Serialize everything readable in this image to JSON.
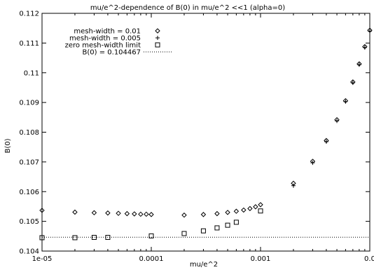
{
  "chart_data": {
    "type": "scatter",
    "title": "mu/e^2-dependence of B(0) in mu/e^2 <<1 (alpha=0)",
    "xlabel": "mu/e^2",
    "ylabel": "B(0)",
    "xscale": "log",
    "xlim": [
      1e-05,
      0.01
    ],
    "ylim": [
      0.104,
      0.112
    ],
    "grid": false,
    "legend_position": "top-left",
    "x_tick_values": [
      1e-05,
      0.0001,
      0.001,
      0.01
    ],
    "x_tick_labels": [
      "1e-05",
      "0.0001",
      "0.001",
      "0.0"
    ],
    "y_tick_values": [
      0.104,
      0.105,
      0.106,
      0.107,
      0.108,
      0.109,
      0.11,
      0.111,
      0.112
    ],
    "y_tick_labels": [
      "0.104",
      "0.105",
      "0.106",
      "0.107",
      "0.108",
      "0.109",
      "0.11",
      "0.111",
      "0.112"
    ],
    "series": [
      {
        "name": "mesh-width = 0.01",
        "marker": "diamond",
        "x": [
          1e-05,
          2e-05,
          3e-05,
          4e-05,
          5e-05,
          6e-05,
          7e-05,
          8e-05,
          9e-05,
          0.0001,
          0.0002,
          0.0003,
          0.0004,
          0.0005,
          0.0006,
          0.0007,
          0.0008,
          0.0009,
          0.001,
          0.002,
          0.003,
          0.004,
          0.005,
          0.006,
          0.007,
          0.008,
          0.009,
          0.01
        ],
        "y": [
          0.10537,
          0.10531,
          0.10529,
          0.10528,
          0.10527,
          0.10526,
          0.10525,
          0.10524,
          0.10524,
          0.10523,
          0.10521,
          0.10523,
          0.10526,
          0.1053,
          0.10534,
          0.10538,
          0.10543,
          0.10549,
          0.10556,
          0.10628,
          0.10702,
          0.10772,
          0.10842,
          0.10906,
          0.10969,
          0.1103,
          0.11088,
          0.11143
        ]
      },
      {
        "name": "mesh-width = 0.005",
        "marker": "plus",
        "x": [
          0.002,
          0.003,
          0.004,
          0.005,
          0.006,
          0.007,
          0.008,
          0.009,
          0.01
        ],
        "y": [
          0.1062,
          0.10697,
          0.10768,
          0.10838,
          0.10903,
          0.10966,
          0.11027,
          0.11085,
          0.1114
        ]
      },
      {
        "name": "zero mesh-width limit",
        "marker": "square",
        "x": [
          1e-05,
          2e-05,
          3e-05,
          4e-05,
          0.0001,
          0.0002,
          0.0003,
          0.0004,
          0.0005,
          0.0006,
          0.001
        ],
        "y": [
          0.10445,
          0.10445,
          0.10446,
          0.10446,
          0.10451,
          0.10459,
          0.10468,
          0.10478,
          0.10487,
          0.10497,
          0.10535
        ]
      },
      {
        "name": "B(0) = 0.104467",
        "marker": "dotted-line",
        "value": 0.104467
      }
    ]
  }
}
